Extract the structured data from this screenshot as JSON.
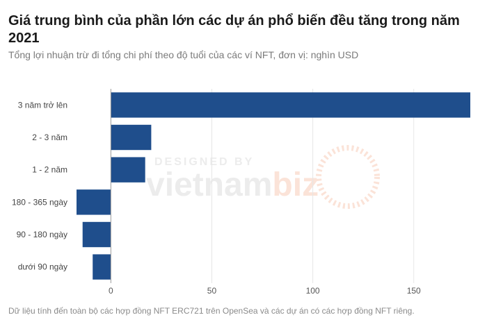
{
  "title": "Giá trung bình của phần lớn các dự án phổ biến đều tăng trong năm 2021",
  "subtitle": "Tổng lợi nhuận trừ đi tổng chi phí theo độ tuổi của các ví NFT, đơn vị: nghìn USD",
  "footnote": "Dữ liệu tính đến toàn bộ các hợp đồng NFT ERC721 trên OpenSea và các dự án có các hợp đồng NFT riêng.",
  "watermark": {
    "small": "DESIGNED BY",
    "brand_a": "vietnam",
    "brand_b": "biz"
  },
  "colors": {
    "bar": "#1f4e8c",
    "grid": "#e6e6e6",
    "zero_line": "#9a9a9a",
    "watermark_gray": "#ececec",
    "watermark_orange": "#fbe3d8"
  },
  "chart_data": {
    "type": "bar",
    "orientation": "horizontal",
    "categories": [
      "3 năm trở lên",
      "2 - 3 năm",
      "1 - 2 năm",
      "180 - 365 ngày",
      "90 - 180 ngày",
      "dưới 90 ngày"
    ],
    "values": [
      178,
      20,
      17,
      -17,
      -14,
      -9
    ],
    "xlim": [
      -17,
      178
    ],
    "xticks": [
      0,
      50,
      100,
      150
    ],
    "grid": true,
    "xlabel": "",
    "ylabel": ""
  }
}
